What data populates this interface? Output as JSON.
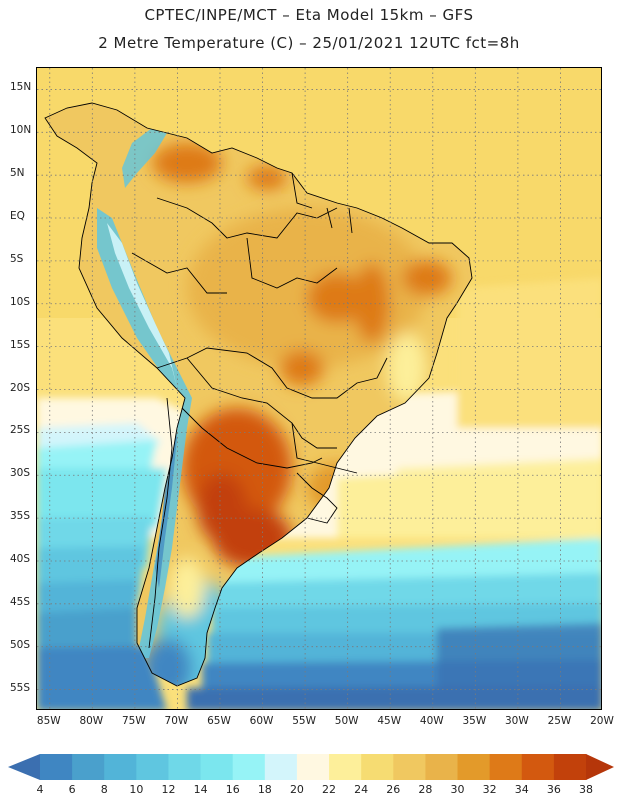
{
  "title": {
    "line1": "CPTEC/INPE/MCT –  Eta Model 15km – GFS",
    "line2": "2 Metre Temperature (C) – 25/01/2021 12UTC fct=8h"
  },
  "map": {
    "lat_labels": [
      "15N",
      "10N",
      "5N",
      "EQ",
      "5S",
      "10S",
      "15S",
      "20S",
      "25S",
      "30S",
      "35S",
      "40S",
      "45S",
      "50S",
      "55S"
    ],
    "lon_labels": [
      "85W",
      "80W",
      "75W",
      "70W",
      "65W",
      "60W",
      "55W",
      "50W",
      "45W",
      "40W",
      "35W",
      "30W",
      "25W",
      "20W"
    ],
    "lat_range": [
      17.5,
      -57.5
    ],
    "lon_range": [
      -86.5,
      -20
    ],
    "grid_lines": true,
    "grid_style": "dotted"
  },
  "colorbar": {
    "labels": [
      "4",
      "6",
      "8",
      "10",
      "12",
      "14",
      "16",
      "18",
      "20",
      "22",
      "24",
      "26",
      "28",
      "30",
      "32",
      "34",
      "36",
      "38"
    ],
    "colors": [
      "#3b6fb0",
      "#3f86c2",
      "#4aa0cc",
      "#52b4d8",
      "#5fc6e0",
      "#6fd8e8",
      "#7be6ee",
      "#96f3f6",
      "#d3f5fb",
      "#fff8e1",
      "#fdef9a",
      "#f6dc72",
      "#f0c860",
      "#e9b34a",
      "#e39a2a",
      "#de7a18",
      "#d3590f",
      "#c2410b",
      "#b5360a"
    ]
  }
}
